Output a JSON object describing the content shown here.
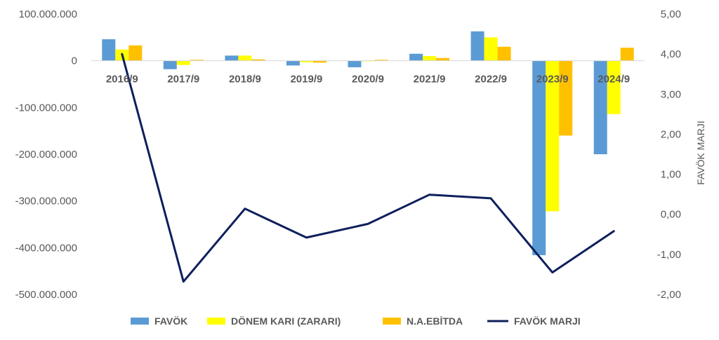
{
  "chart_data": {
    "type": "bar",
    "categories": [
      "2016/9",
      "2017/9",
      "2018/9",
      "2019/9",
      "2020/9",
      "2021/9",
      "2022/9",
      "2023/9",
      "2024/9"
    ],
    "series": [
      {
        "name": "FAVÖK",
        "type": "bar",
        "axis": "left",
        "color": "#5B9BD5",
        "values": [
          46000000,
          -18000000,
          11000000,
          -10000000,
          -14000000,
          15000000,
          63000000,
          -416000000,
          -200000000
        ]
      },
      {
        "name": "DÖNEM KARI (ZARARI)",
        "type": "bar",
        "axis": "left",
        "color": "#FFFF00",
        "values": [
          24000000,
          -9000000,
          11000000,
          -3000000,
          -1000000,
          10000000,
          50000000,
          -322000000,
          -114000000
        ]
      },
      {
        "name": "N.A.EBİTDA",
        "type": "bar",
        "axis": "left",
        "color": "#FFC000",
        "values": [
          33000000,
          2000000,
          3000000,
          -4000000,
          2000000,
          6000000,
          30000000,
          -160000000,
          28000000
        ]
      },
      {
        "name": "FAVÖK MARJI",
        "type": "line",
        "axis": "right",
        "color": "#0D1F5C",
        "values": [
          4.0,
          -1.68,
          0.14,
          -0.58,
          -0.24,
          0.49,
          0.4,
          -1.45,
          -0.42
        ]
      }
    ],
    "y_left": {
      "ylim": [
        -500000000,
        100000000
      ],
      "ticks": [
        100000000,
        0,
        -100000000,
        -200000000,
        -300000000,
        -400000000,
        -500000000
      ],
      "tick_labels": [
        "100.000.000",
        "0",
        "-100.000.000",
        "-200.000.000",
        "-300.000.000",
        "-400.000.000",
        "-500.000.000"
      ]
    },
    "y_right": {
      "ylim": [
        -2,
        5
      ],
      "ticks": [
        5,
        4,
        3,
        2,
        1,
        0,
        -1,
        -2
      ],
      "tick_labels": [
        "5,00",
        "4,00",
        "3,00",
        "2,00",
        "1,00",
        "0,00",
        "-1,00",
        "-2,00"
      ],
      "label": "FAVÖK MARJI"
    },
    "grid": false,
    "legend_position": "bottom"
  }
}
